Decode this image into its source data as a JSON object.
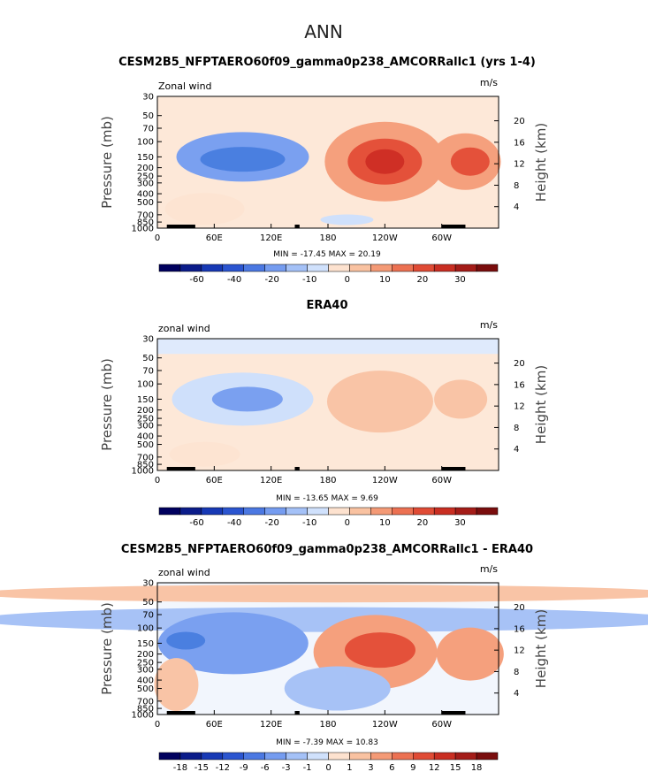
{
  "page_title": "ANN",
  "chart_data": [
    {
      "type": "heatmap",
      "title": "CESM2B5_NFPTAERO60f09_gamma0p238_AMCORRallc1 (yrs 1-4)",
      "left_label": "Zonal wind",
      "right_label": "m/s",
      "ylabel": "Pressure (mb)",
      "ylabel_right": "Height (km)",
      "x_ticks": [
        "0",
        "60E",
        "120E",
        "180",
        "120W",
        "60W"
      ],
      "x_range_deg": [
        0,
        360
      ],
      "y_ticks": [
        "30",
        "50",
        "70",
        "100",
        "150",
        "200",
        "250",
        "300",
        "400",
        "500",
        "700",
        "850",
        "1000"
      ],
      "y_ticks_right": [
        "20",
        "16",
        "12",
        "8",
        "4"
      ],
      "stats": "MIN = -17.45   MAX =  20.19",
      "cbar_labels": [
        "-60",
        "-40",
        "-20",
        "-10",
        "0",
        "10",
        "20",
        "30"
      ],
      "features": [
        {
          "lon": 90,
          "p": 150,
          "value": -10,
          "rx": 75,
          "ry": 28
        },
        {
          "lon": 90,
          "p": 160,
          "value": -15,
          "rx": 48,
          "ry": 14
        },
        {
          "lon": 240,
          "p": 170,
          "value": 10,
          "rx": 68,
          "ry": 45
        },
        {
          "lon": 240,
          "p": 170,
          "value": 16,
          "rx": 42,
          "ry": 26
        },
        {
          "lon": 240,
          "p": 170,
          "value": 20,
          "rx": 22,
          "ry": 14
        },
        {
          "lon": 325,
          "p": 170,
          "value": 10,
          "rx": 40,
          "ry": 32
        },
        {
          "lon": 330,
          "p": 170,
          "value": 16,
          "rx": 22,
          "ry": 16
        },
        {
          "lon": 50,
          "p": 600,
          "value": 3,
          "rx": 45,
          "ry": 18
        },
        {
          "lon": 200,
          "p": 800,
          "value": -3,
          "rx": 30,
          "ry": 6
        }
      ]
    },
    {
      "type": "heatmap",
      "title": "ERA40",
      "left_label": "zonal wind",
      "right_label": "m/s",
      "ylabel": "Pressure (mb)",
      "ylabel_right": "Height (km)",
      "x_ticks": [
        "0",
        "60E",
        "120E",
        "180",
        "120W",
        "60W"
      ],
      "x_range_deg": [
        0,
        360
      ],
      "y_ticks": [
        "30",
        "50",
        "70",
        "100",
        "150",
        "200",
        "250",
        "300",
        "400",
        "500",
        "700",
        "850",
        "1000"
      ],
      "y_ticks_right": [
        "20",
        "16",
        "12",
        "8",
        "4"
      ],
      "stats": "MIN = -13.65   MAX =   9.69",
      "cbar_labels": [
        "-60",
        "-40",
        "-20",
        "-10",
        "0",
        "10",
        "20",
        "30"
      ],
      "features": [
        {
          "lon": 90,
          "p": 150,
          "value": -3,
          "rx": 80,
          "ry": 30
        },
        {
          "lon": 95,
          "p": 150,
          "value": -8,
          "rx": 40,
          "ry": 14
        },
        {
          "lon": 235,
          "p": 160,
          "value": 6,
          "rx": 60,
          "ry": 35
        },
        {
          "lon": 320,
          "p": 150,
          "value": 5,
          "rx": 30,
          "ry": 22
        },
        {
          "lon": 50,
          "p": 650,
          "value": 2,
          "rx": 40,
          "ry": 14
        }
      ]
    },
    {
      "type": "heatmap",
      "title": "CESM2B5_NFPTAERO60f09_gamma0p238_AMCORRallc1 - ERA40",
      "left_label": "zonal wind",
      "right_label": "m/s",
      "ylabel": "Pressure (mb)",
      "ylabel_right": "Height (km)",
      "x_ticks": [
        "0",
        "60E",
        "120E",
        "180",
        "120W",
        "60W"
      ],
      "x_range_deg": [
        0,
        360
      ],
      "y_ticks": [
        "30",
        "50",
        "70",
        "100",
        "150",
        "200",
        "250",
        "300",
        "400",
        "500",
        "700",
        "850",
        "1000"
      ],
      "y_ticks_right": [
        "20",
        "16",
        "12",
        "8",
        "4"
      ],
      "stats": "MIN =  -7.39   MAX =  10.83",
      "cbar_labels": [
        "-18",
        "-15",
        "-12",
        "-9",
        "-6",
        "-3",
        "-1",
        "0",
        "1",
        "3",
        "6",
        "9",
        "12",
        "15",
        "18"
      ],
      "features": [
        {
          "lon": 180,
          "p": 40,
          "value": 2,
          "rx": 400,
          "ry": 10
        },
        {
          "lon": 180,
          "p": 80,
          "value": -2,
          "rx": 400,
          "ry": 14
        },
        {
          "lon": 80,
          "p": 150,
          "value": -4,
          "rx": 85,
          "ry": 35
        },
        {
          "lon": 30,
          "p": 140,
          "value": -7,
          "rx": 22,
          "ry": 10
        },
        {
          "lon": 230,
          "p": 190,
          "value": 4,
          "rx": 70,
          "ry": 42
        },
        {
          "lon": 235,
          "p": 180,
          "value": 8,
          "rx": 40,
          "ry": 20
        },
        {
          "lon": 330,
          "p": 200,
          "value": 5,
          "rx": 38,
          "ry": 30
        },
        {
          "lon": 20,
          "p": 450,
          "value": 3,
          "rx": 25,
          "ry": 30
        },
        {
          "lon": 190,
          "p": 500,
          "value": -2,
          "rx": 60,
          "ry": 25
        }
      ]
    }
  ]
}
